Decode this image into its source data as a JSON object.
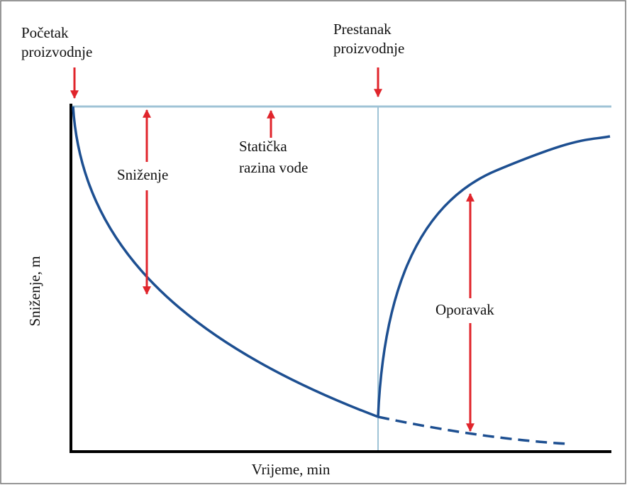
{
  "diagram": {
    "start_label": [
      "Početak",
      "proizvodnje"
    ],
    "stop_label": [
      "Prestanak",
      "proizvodnje"
    ],
    "static_level_label": [
      "Statička",
      "razina vode"
    ],
    "drawdown_label": "Sniženje",
    "recovery_label": "Oporavak",
    "y_axis_label": "Sniženje, m",
    "x_axis_label": "Vrijeme, min"
  }
}
